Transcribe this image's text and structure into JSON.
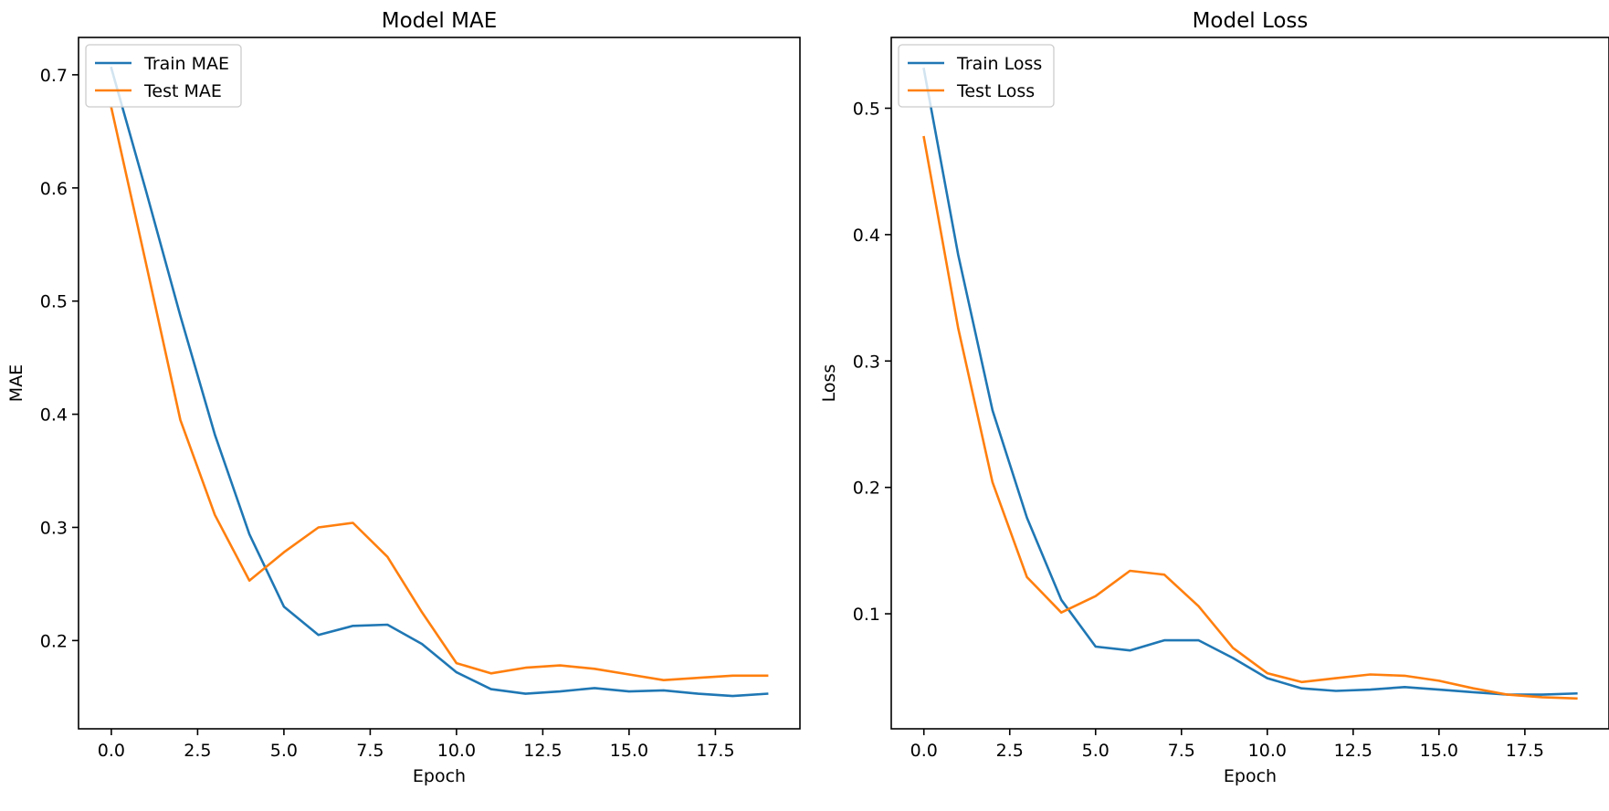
{
  "chart_data": [
    {
      "type": "line",
      "title": "Model MAE",
      "xlabel": "Epoch",
      "ylabel": "MAE",
      "x": [
        0,
        1,
        2,
        3,
        4,
        5,
        6,
        7,
        8,
        9,
        10,
        11,
        12,
        13,
        14,
        15,
        16,
        17,
        18,
        19
      ],
      "xlim": [
        -0.95,
        19.95
      ],
      "ylim": [
        0.122,
        0.733
      ],
      "xticks": [
        0.0,
        2.5,
        5.0,
        7.5,
        10.0,
        12.5,
        15.0,
        17.5
      ],
      "xtick_labels": [
        "0.0",
        "2.5",
        "5.0",
        "7.5",
        "10.0",
        "12.5",
        "15.0",
        "17.5"
      ],
      "yticks": [
        0.2,
        0.3,
        0.4,
        0.5,
        0.6,
        0.7
      ],
      "ytick_labels": [
        "0.2",
        "0.3",
        "0.4",
        "0.5",
        "0.6",
        "0.7"
      ],
      "grid": false,
      "legend_position": "upper left",
      "series": [
        {
          "name": "Train MAE",
          "color": "#1f77b4",
          "values": [
            0.706,
            0.598,
            0.487,
            0.382,
            0.294,
            0.23,
            0.205,
            0.213,
            0.214,
            0.197,
            0.172,
            0.157,
            0.153,
            0.155,
            0.158,
            0.155,
            0.156,
            0.153,
            0.151,
            0.153
          ]
        },
        {
          "name": "Test MAE",
          "color": "#ff7f0e",
          "values": [
            0.671,
            0.534,
            0.395,
            0.311,
            0.253,
            0.278,
            0.3,
            0.304,
            0.274,
            0.225,
            0.18,
            0.171,
            0.176,
            0.178,
            0.175,
            0.17,
            0.165,
            0.167,
            0.169,
            0.169
          ]
        }
      ]
    },
    {
      "type": "line",
      "title": "Model Loss",
      "xlabel": "Epoch",
      "ylabel": "Loss",
      "x": [
        0,
        1,
        2,
        3,
        4,
        5,
        6,
        7,
        8,
        9,
        10,
        11,
        12,
        13,
        14,
        15,
        16,
        17,
        18,
        19
      ],
      "xlim": [
        -0.95,
        19.95
      ],
      "ylim": [
        0.009,
        0.556
      ],
      "xticks": [
        0.0,
        2.5,
        5.0,
        7.5,
        10.0,
        12.5,
        15.0,
        17.5
      ],
      "xtick_labels": [
        "0.0",
        "2.5",
        "5.0",
        "7.5",
        "10.0",
        "12.5",
        "15.0",
        "17.5"
      ],
      "yticks": [
        0.1,
        0.2,
        0.3,
        0.4,
        0.5
      ],
      "ytick_labels": [
        "0.1",
        "0.2",
        "0.3",
        "0.4",
        "0.5"
      ],
      "grid": false,
      "legend_position": "upper left",
      "series": [
        {
          "name": "Train Loss",
          "color": "#1f77b4",
          "values": [
            0.531,
            0.384,
            0.261,
            0.176,
            0.111,
            0.074,
            0.071,
            0.079,
            0.079,
            0.065,
            0.049,
            0.041,
            0.039,
            0.04,
            0.042,
            0.04,
            0.038,
            0.036,
            0.036,
            0.037
          ]
        },
        {
          "name": "Test Loss",
          "color": "#ff7f0e",
          "values": [
            0.477,
            0.326,
            0.204,
            0.129,
            0.101,
            0.114,
            0.134,
            0.131,
            0.106,
            0.073,
            0.053,
            0.046,
            0.049,
            0.052,
            0.051,
            0.047,
            0.041,
            0.036,
            0.034,
            0.033
          ]
        }
      ]
    }
  ]
}
